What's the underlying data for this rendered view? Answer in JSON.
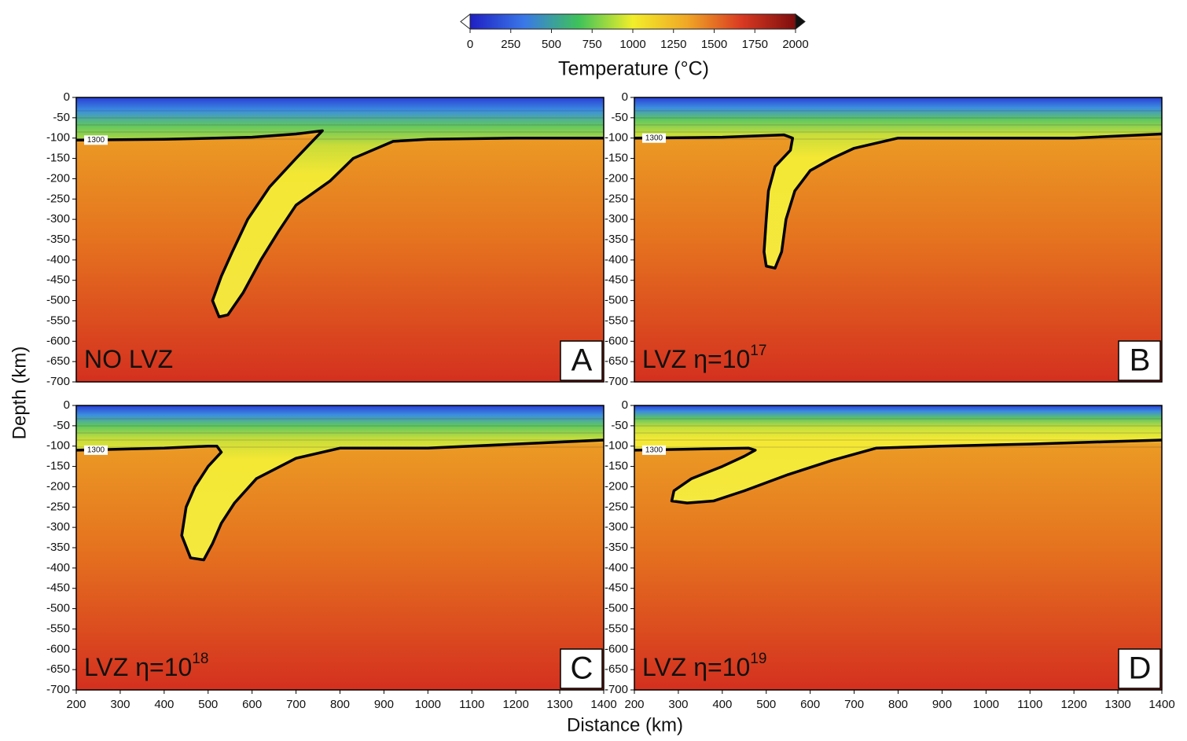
{
  "colorbar": {
    "label": "Temperature (°C)",
    "lim": [
      0,
      2000
    ],
    "ticks": [
      0,
      250,
      500,
      750,
      1000,
      1250,
      1500,
      1750,
      2000
    ],
    "colors": [
      "#1f1fc4",
      "#3a78e8",
      "#3ec25a",
      "#f2ee2a",
      "#f0a726",
      "#d93a22",
      "#7d0d0d"
    ]
  },
  "x_label": "Distance (km)",
  "y_label": "Depth (km)",
  "chart_data": [
    {
      "type": "contour",
      "panel_label": "A",
      "annotation": "NO LVZ",
      "contour_label": "1300",
      "xlim": [
        200,
        1400
      ],
      "ylim": [
        -700,
        0
      ],
      "yticks": [
        0,
        -50,
        -100,
        -150,
        -200,
        -250,
        -300,
        -350,
        -400,
        -450,
        -500,
        -550,
        -600,
        -650,
        -700
      ],
      "isotherm": {
        "x": [
          200,
          400,
          600,
          700,
          760,
          700,
          640,
          590,
          555,
          530,
          510,
          525,
          545,
          580,
          620,
          660,
          700,
          778,
          830,
          921,
          1000,
          1200,
          1400
        ],
        "y": [
          -105,
          -103,
          -98,
          -90,
          -82,
          -150,
          -220,
          -300,
          -380,
          -440,
          -500,
          -540,
          -535,
          -480,
          -400,
          -330,
          -265,
          -205,
          -150,
          -108,
          -103,
          -100,
          -100
        ]
      }
    },
    {
      "type": "contour",
      "panel_label": "B",
      "annotation": "LVZ η=10",
      "annotation_exponent": "17",
      "contour_label": "1300",
      "xlim": [
        200,
        1400
      ],
      "ylim": [
        -700,
        0
      ],
      "yticks": [
        0,
        -50,
        -100,
        -150,
        -200,
        -250,
        -300,
        -350,
        -400,
        -450,
        -500,
        -550,
        -600,
        -650,
        -700
      ],
      "isotherm": {
        "x": [
          200,
          400,
          540,
          560,
          555,
          520,
          505,
          500,
          495,
          500,
          520,
          535,
          545,
          565,
          600,
          650,
          700,
          800,
          1000,
          1200,
          1400
        ],
        "y": [
          -100,
          -98,
          -92,
          -100,
          -130,
          -170,
          -230,
          -300,
          -380,
          -415,
          -420,
          -380,
          -300,
          -230,
          -180,
          -150,
          -125,
          -100,
          -100,
          -100,
          -90
        ]
      }
    },
    {
      "type": "contour",
      "panel_label": "C",
      "annotation": "LVZ η=10",
      "annotation_exponent": "18",
      "contour_label": "1300",
      "xlim": [
        200,
        1400
      ],
      "ylim": [
        -700,
        0
      ],
      "xticks": [
        200,
        300,
        400,
        500,
        600,
        700,
        800,
        900,
        1000,
        1100,
        1200,
        1300,
        1400
      ],
      "yticks": [
        0,
        -50,
        -100,
        -150,
        -200,
        -250,
        -300,
        -350,
        -400,
        -450,
        -500,
        -550,
        -600,
        -650,
        -700
      ],
      "isotherm": {
        "x": [
          200,
          400,
          500,
          520,
          530,
          500,
          470,
          450,
          440,
          460,
          490,
          510,
          530,
          560,
          610,
          700,
          800,
          1000,
          1200,
          1400
        ],
        "y": [
          -110,
          -105,
          -100,
          -100,
          -115,
          -150,
          -200,
          -250,
          -320,
          -375,
          -380,
          -340,
          -290,
          -240,
          -180,
          -130,
          -105,
          -105,
          -95,
          -85
        ]
      }
    },
    {
      "type": "contour",
      "panel_label": "D",
      "annotation": "LVZ η=10",
      "annotation_exponent": "19",
      "contour_label": "1300",
      "xlim": [
        200,
        1400
      ],
      "ylim": [
        -700,
        0
      ],
      "xticks": [
        200,
        300,
        400,
        500,
        600,
        700,
        800,
        900,
        1000,
        1100,
        1200,
        1300,
        1400
      ],
      "yticks": [
        0,
        -50,
        -100,
        -150,
        -200,
        -250,
        -300,
        -350,
        -400,
        -450,
        -500,
        -550,
        -600,
        -650,
        -700
      ],
      "isotherm": {
        "x": [
          200,
          460,
          475,
          450,
          400,
          330,
          290,
          285,
          320,
          380,
          450,
          550,
          650,
          750,
          900,
          1100,
          1400
        ],
        "y": [
          -110,
          -105,
          -110,
          -125,
          -150,
          -180,
          -210,
          -235,
          -240,
          -235,
          -210,
          -170,
          -135,
          -105,
          -100,
          -95,
          -85
        ]
      }
    }
  ]
}
